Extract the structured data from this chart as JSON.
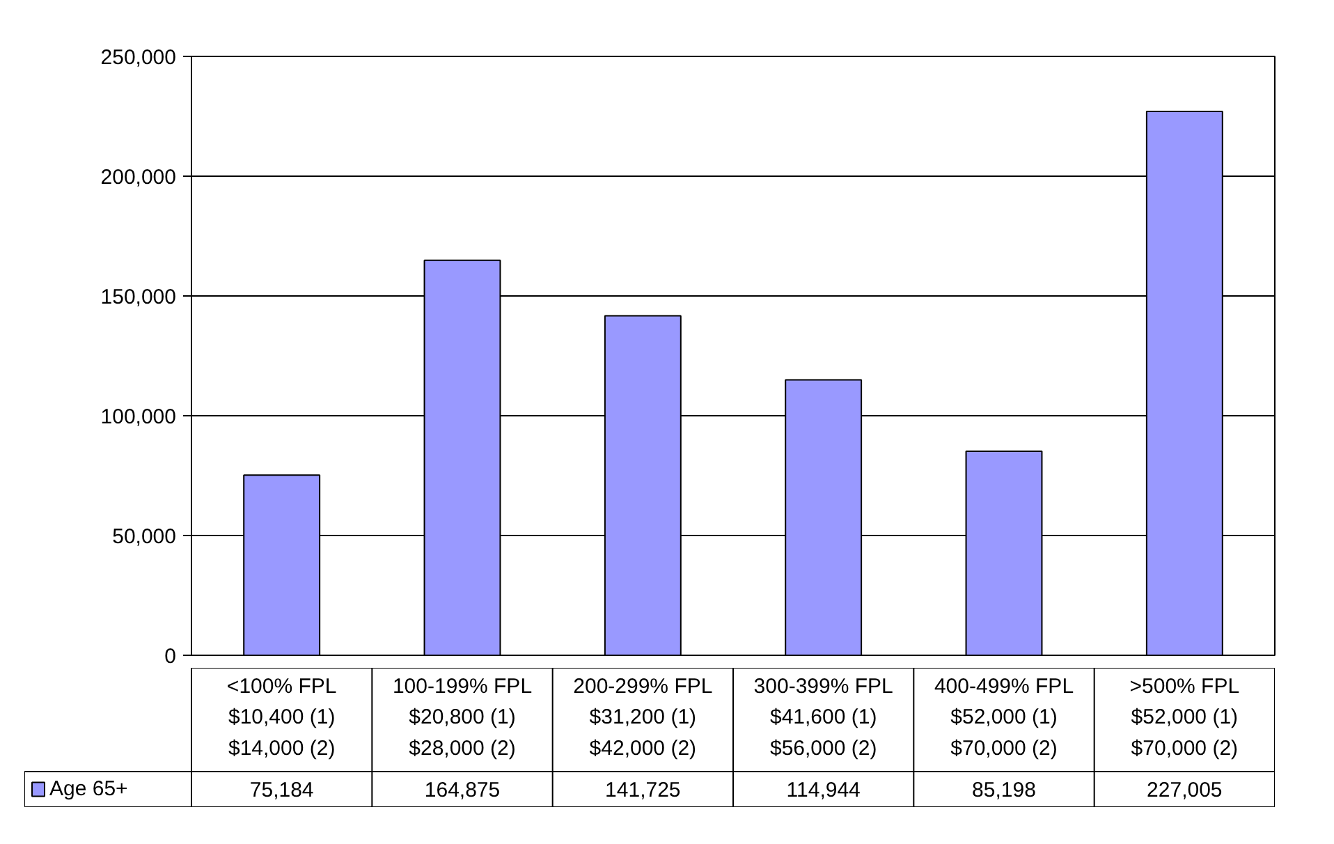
{
  "chart_data": {
    "type": "bar",
    "categories": [
      "<100% FPL\n$10,400 (1)\n$14,000 (2)",
      "100-199% FPL\n$20,800 (1)\n$28,000 (2)",
      "200-299% FPL\n$31,200 (1)\n$42,000 (2)",
      "300-399% FPL\n$41,600 (1)\n$56,000 (2)",
      "400-499% FPL\n$52,000 (1)\n$70,000 (2)",
      ">500% FPL\n$52,000 (1)\n$70,000 (2)"
    ],
    "series": [
      {
        "name": "Age 65+",
        "color": "#9999ff",
        "values": [
          75184,
          164875,
          141725,
          114944,
          85198,
          227005
        ],
        "value_labels": [
          "75,184",
          "164,875",
          "141,725",
          "114,944",
          "85,198",
          "227,005"
        ]
      }
    ],
    "ylim": [
      0,
      250000
    ],
    "yticks": [
      {
        "value": 0,
        "label": "0"
      },
      {
        "value": 50000,
        "label": "50,000"
      },
      {
        "value": 100000,
        "label": "100,000"
      },
      {
        "value": 150000,
        "label": "150,000"
      },
      {
        "value": 200000,
        "label": "200,000"
      },
      {
        "value": 250000,
        "label": "250,000"
      }
    ],
    "grid": "y",
    "legend": "bottom"
  }
}
